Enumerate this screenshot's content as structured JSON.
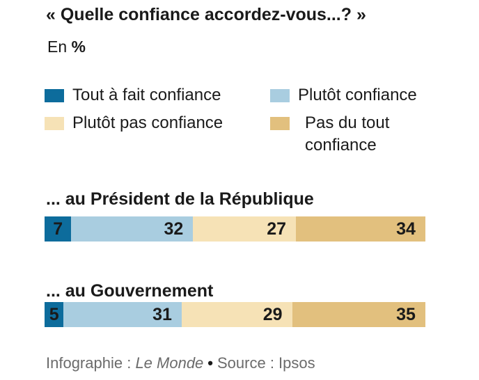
{
  "title": "« Quelle confiance accordez-vous...? »",
  "unit": {
    "prefix": "En",
    "symbol": "%"
  },
  "colors": {
    "tout_a_fait": "#0d6c9c",
    "plutot": "#a9cde0",
    "plutot_pas": "#f6e2b6",
    "pas_du_tout": "#e2c07e"
  },
  "legend": [
    {
      "label": "Tout à fait confiance",
      "color": "#0d6c9c"
    },
    {
      "label": "Plutôt confiance",
      "color": "#a9cde0"
    },
    {
      "label": "Plutôt pas confiance",
      "color": "#f6e2b6"
    },
    {
      "label": "Pas du tout confiance",
      "line1": "Pas du tout",
      "line2": "confiance",
      "color": "#e2c07e"
    }
  ],
  "chart_data": {
    "type": "bar",
    "orientation": "horizontal-stacked-100",
    "title": "« Quelle confiance accordez-vous...? »",
    "unit": "%",
    "categories": [
      "... au Président de la République",
      "... au Gouvernement"
    ],
    "series": [
      {
        "name": "Tout à fait confiance",
        "values": [
          7,
          5
        ],
        "color": "#0d6c9c"
      },
      {
        "name": "Plutôt confiance",
        "values": [
          32,
          31
        ],
        "color": "#a9cde0"
      },
      {
        "name": "Plutôt pas confiance",
        "values": [
          27,
          29
        ],
        "color": "#f6e2b6"
      },
      {
        "name": "Pas du tout confiance",
        "values": [
          34,
          35
        ],
        "color": "#e2c07e"
      }
    ],
    "xlim": [
      0,
      100
    ],
    "legend_position": "top",
    "grid": false
  },
  "footer": {
    "prefix": "Infographie :",
    "publication": "Le Monde",
    "separator": "•",
    "source": "Source : Ipsos"
  }
}
